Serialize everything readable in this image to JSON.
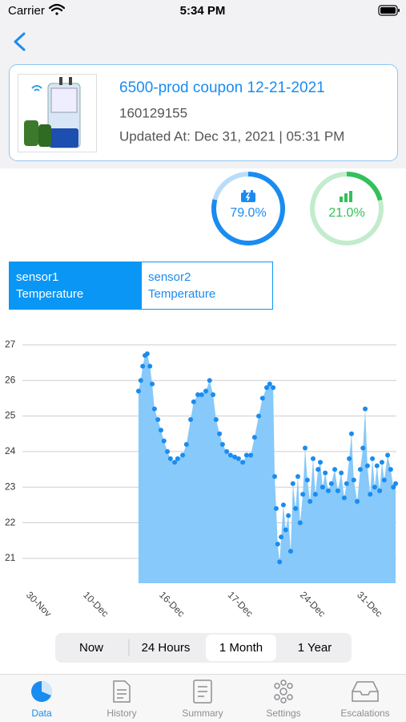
{
  "status_bar": {
    "carrier": "Carrier",
    "time": "5:34 PM"
  },
  "device": {
    "name": "6500-prod coupon 12-21-2021",
    "serial": "160129155",
    "updated": "Updated At: Dec 31, 2021 | 05:31 PM"
  },
  "gauges": [
    {
      "value": 79.0,
      "label": "79.0%",
      "color": "#1a8cf0"
    },
    {
      "value": 21.0,
      "label": "21.0%",
      "color": "#34c05a"
    }
  ],
  "sensor_tabs": [
    {
      "name": "sensor1",
      "measure": "Temperature"
    },
    {
      "name": "sensor2",
      "measure": "Temperature"
    }
  ],
  "selected_sensor": 0,
  "chart_data": {
    "type": "area",
    "color": "#1a8cf0",
    "fill": "#86c9fa",
    "x": [
      32.2,
      32.8,
      33.3,
      33.9,
      34.5,
      35.2,
      35.8,
      36.4,
      37.3,
      38.1,
      38.9,
      39.8,
      40.6,
      41.7,
      42.5,
      43.8,
      44.8,
      45.9,
      46.7,
      47.8,
      48.8,
      49.9,
      50.9,
      51.8,
      52.6,
      53.5,
      54.3,
      55.4,
      56.4,
      57.5,
      58.5,
      59.6,
      60.6,
      61.7,
      62.7,
      63.8,
      64.8,
      65.9,
      66.7,
      67.6,
      68.0,
      68.4,
      68.8,
      69.3,
      69.7,
      70.3,
      70.9,
      71.6,
      72.2,
      72.8,
      73.5,
      74.1,
      74.7,
      75.4,
      76.0,
      76.6,
      77.3,
      78.1,
      78.7,
      79.4,
      80.0,
      80.6,
      81.3,
      82.1,
      82.9,
      83.8,
      84.6,
      85.5,
      86.3,
      86.9,
      87.6,
      88.2,
      88.8,
      89.7,
      90.5,
      91.2,
      91.8,
      92.4,
      93.1,
      93.7,
      94.3,
      94.9,
      95.6,
      96.2,
      96.8,
      97.7,
      98.5,
      99.2,
      99.8
    ],
    "values": [
      25.7,
      26.0,
      26.4,
      26.7,
      26.75,
      26.4,
      25.9,
      25.2,
      24.9,
      24.6,
      24.3,
      24.0,
      23.8,
      23.7,
      23.8,
      23.9,
      24.2,
      24.9,
      25.4,
      25.6,
      25.6,
      25.7,
      26.0,
      25.6,
      24.9,
      24.5,
      24.2,
      24.0,
      23.9,
      23.85,
      23.8,
      23.7,
      23.9,
      23.9,
      24.4,
      25.0,
      25.5,
      25.8,
      25.9,
      25.8,
      23.3,
      22.4,
      21.4,
      20.9,
      21.6,
      22.5,
      21.8,
      22.2,
      21.2,
      23.1,
      22.4,
      23.3,
      22.0,
      22.8,
      24.1,
      23.2,
      22.6,
      23.8,
      22.8,
      23.5,
      23.7,
      23.0,
      23.4,
      22.9,
      23.1,
      23.5,
      22.9,
      23.4,
      22.7,
      23.1,
      23.8,
      24.5,
      23.2,
      22.6,
      23.5,
      24.1,
      25.2,
      23.6,
      22.8,
      23.8,
      23.0,
      23.6,
      22.9,
      23.7,
      23.2,
      23.9,
      23.5,
      23.0,
      23.1
    ],
    "xlim": [
      0,
      100
    ],
    "xticks": [
      {
        "value": 3,
        "label": "30-Nov"
      },
      {
        "value": 18,
        "label": "10-Dec"
      },
      {
        "value": 38,
        "label": "16-Dec"
      },
      {
        "value": 56,
        "label": "17-Dec"
      },
      {
        "value": 75,
        "label": "24-Dec"
      },
      {
        "value": 90,
        "label": "31-Dec"
      }
    ],
    "ylim": [
      20.3,
      27.2
    ],
    "yticks": [
      21,
      22,
      23,
      24,
      25,
      26,
      27
    ],
    "grid": true
  },
  "range_selector": {
    "options": [
      "Now",
      "24 Hours",
      "1 Month",
      "1 Year"
    ],
    "selected": 2
  },
  "tab_bar": {
    "items": [
      "Data",
      "History",
      "Summary",
      "Settings",
      "Escalations"
    ],
    "selected": 0
  }
}
